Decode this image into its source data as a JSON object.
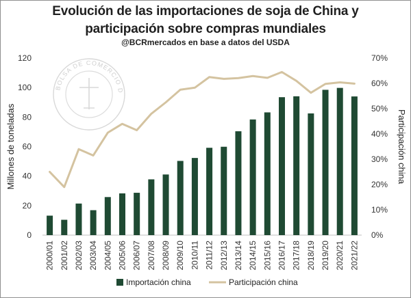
{
  "header": {
    "title_line1": "Evolución de las importaciones de soja de China y",
    "title_line2": "participación sobre compras mundiales",
    "subtitle": "@BCRmercados en base a datos del USDA"
  },
  "watermark": {
    "text": "BOLSA DE COMERCIO DE ROSARIO"
  },
  "colors": {
    "bar": "#1f4a33",
    "line": "#d4c3a0",
    "axis_text": "#333333"
  },
  "chart_data": {
    "type": "bar+line",
    "categories": [
      "2000/01",
      "2001/02",
      "2002/03",
      "2003/04",
      "2004/05",
      "2005/06",
      "2006/07",
      "2007/08",
      "2008/09",
      "2009/10",
      "2010/11",
      "2011/12",
      "2012/13",
      "2013/14",
      "2014/15",
      "2015/16",
      "2016/17",
      "2017/18",
      "2018/19",
      "2019/20",
      "2020/21",
      "2021/22"
    ],
    "series": [
      {
        "name": "Importación china",
        "type": "bar",
        "axis": "left",
        "values": [
          13.2,
          10.4,
          21.4,
          16.9,
          25.8,
          28.3,
          28.7,
          37.8,
          41.1,
          50.3,
          52.3,
          59.2,
          59.9,
          70.4,
          78.4,
          83.2,
          93.5,
          94.1,
          82.5,
          98.5,
          99.8,
          94.0
        ]
      },
      {
        "name": "Participación china",
        "type": "line",
        "axis": "right",
        "values": [
          25.0,
          19.0,
          34.0,
          31.5,
          40.5,
          44.0,
          41.5,
          48.0,
          52.5,
          57.5,
          58.3,
          62.5,
          61.8,
          62.1,
          62.9,
          62.2,
          64.5,
          61.0,
          56.3,
          59.8,
          60.4,
          59.9
        ]
      }
    ],
    "y_left": {
      "label": "Millones de toneladas",
      "min": 0,
      "max": 120,
      "ticks": [
        "0",
        "20",
        "40",
        "60",
        "80",
        "100",
        "120"
      ]
    },
    "y_right": {
      "label": "Participación china",
      "min": 0,
      "max": 70,
      "ticks": [
        "0%",
        "10%",
        "20%",
        "30%",
        "40%",
        "50%",
        "60%",
        "70%"
      ]
    },
    "grid": false,
    "legend": {
      "position": "bottom",
      "items": [
        "Importación china",
        "Participación china"
      ]
    }
  }
}
